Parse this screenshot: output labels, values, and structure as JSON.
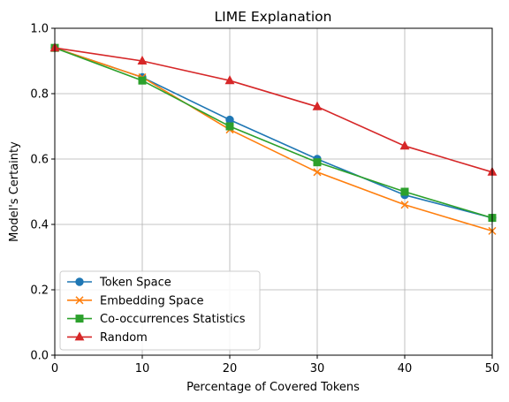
{
  "chart_data": {
    "type": "line",
    "title": "LIME Explanation",
    "xlabel": "Percentage of Covered Tokens",
    "ylabel": "Model's Certainty",
    "x": [
      0,
      10,
      20,
      30,
      40,
      50
    ],
    "xlim": [
      0,
      50
    ],
    "ylim": [
      0.0,
      1.0
    ],
    "xticks": [
      "0",
      "10",
      "20",
      "30",
      "40",
      "50"
    ],
    "yticks": [
      "0.0",
      "0.2",
      "0.4",
      "0.6",
      "0.8",
      "1.0"
    ],
    "grid": true,
    "legend_position": "lower-left",
    "series": [
      {
        "name": "Token Space",
        "color": "#1f77b4",
        "marker": "circle",
        "values": [
          0.94,
          0.85,
          0.72,
          0.6,
          0.49,
          0.42
        ]
      },
      {
        "name": "Embedding Space",
        "color": "#ff7f0e",
        "marker": "x",
        "values": [
          0.94,
          0.85,
          0.69,
          0.56,
          0.46,
          0.38
        ]
      },
      {
        "name": "Co-occurrences Statistics",
        "color": "#2ca02c",
        "marker": "square",
        "values": [
          0.94,
          0.84,
          0.7,
          0.59,
          0.5,
          0.42
        ]
      },
      {
        "name": "Random",
        "color": "#d62728",
        "marker": "triangle",
        "values": [
          0.94,
          0.9,
          0.84,
          0.76,
          0.64,
          0.56
        ]
      }
    ]
  }
}
